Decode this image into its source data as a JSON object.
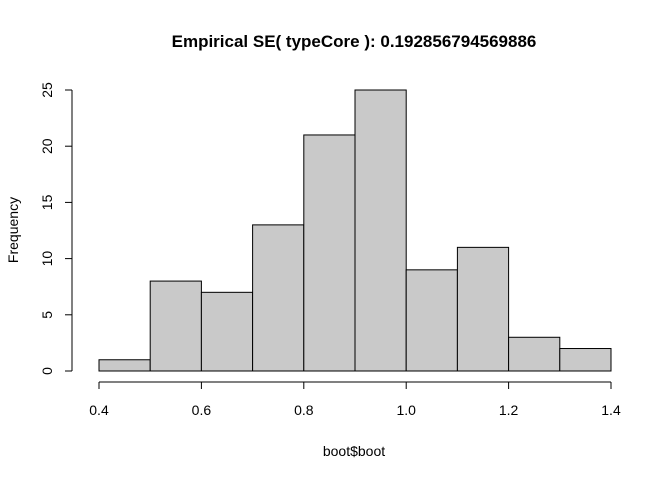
{
  "chart_data": {
    "type": "bar",
    "title": "Empirical SE( typeCore ):  0.192856794569886",
    "xlabel": "boot$boot",
    "ylabel": "Frequency",
    "bins": [
      {
        "from": 0.4,
        "to": 0.5,
        "count": 1
      },
      {
        "from": 0.5,
        "to": 0.6,
        "count": 8
      },
      {
        "from": 0.6,
        "to": 0.7,
        "count": 7
      },
      {
        "from": 0.7,
        "to": 0.8,
        "count": 13
      },
      {
        "from": 0.8,
        "to": 0.9,
        "count": 21
      },
      {
        "from": 0.9,
        "to": 1.0,
        "count": 25
      },
      {
        "from": 1.0,
        "to": 1.1,
        "count": 9
      },
      {
        "from": 1.1,
        "to": 1.2,
        "count": 11
      },
      {
        "from": 1.2,
        "to": 1.3,
        "count": 3
      },
      {
        "from": 1.3,
        "to": 1.4,
        "count": 2
      }
    ],
    "xlim": [
      0.4,
      1.4
    ],
    "ylim": [
      0,
      25
    ],
    "x_ticks": [
      {
        "value": 0.4,
        "label": "0.4"
      },
      {
        "value": 0.6,
        "label": "0.6"
      },
      {
        "value": 0.8,
        "label": "0.8"
      },
      {
        "value": 1.0,
        "label": "1.0"
      },
      {
        "value": 1.2,
        "label": "1.2"
      },
      {
        "value": 1.4,
        "label": "1.4"
      }
    ],
    "y_ticks": [
      {
        "value": 0,
        "label": "0"
      },
      {
        "value": 5,
        "label": "5"
      },
      {
        "value": 10,
        "label": "10"
      },
      {
        "value": 15,
        "label": "15"
      },
      {
        "value": 20,
        "label": "20"
      },
      {
        "value": 25,
        "label": "25"
      }
    ],
    "grid": false,
    "colors": {
      "bar_fill": "#c9c9c9",
      "bar_stroke": "#000000"
    }
  }
}
